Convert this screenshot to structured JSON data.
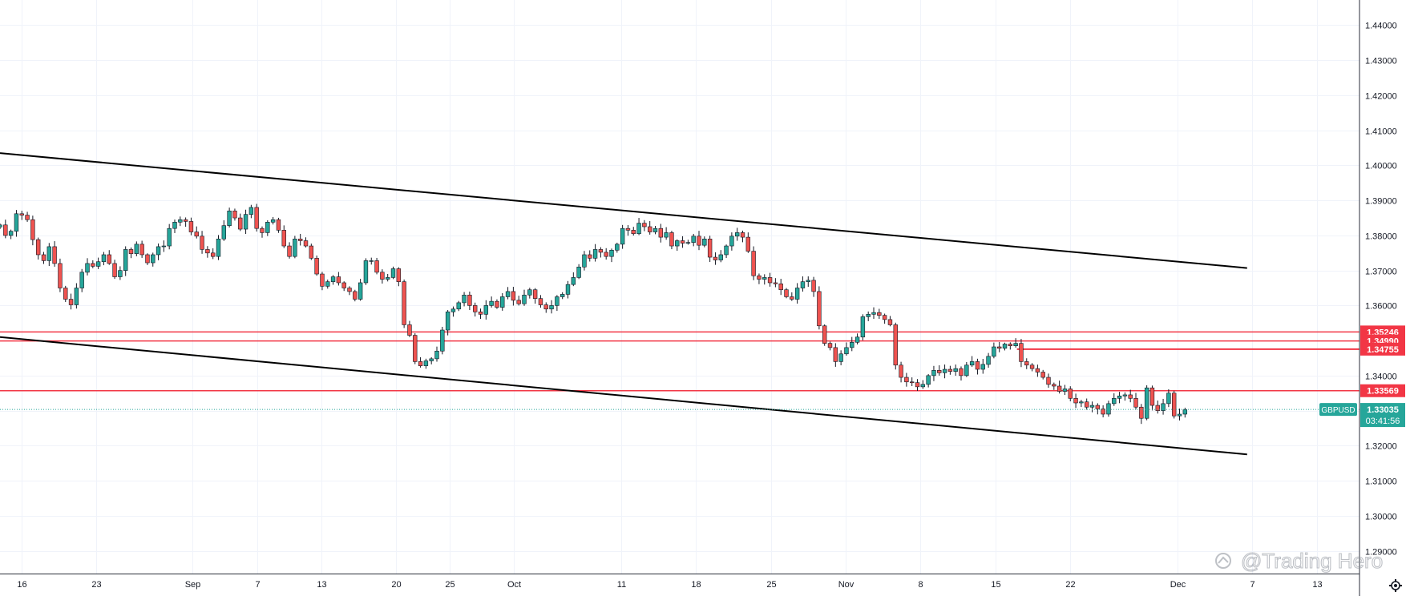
{
  "chart_data": {
    "type": "candlestick",
    "symbol": "GBPUSD",
    "last_price": 1.33035,
    "last_price_label": "1.33035",
    "countdown": "03:41:56",
    "y_ticks": [
      "1.29000",
      "1.30000",
      "1.31000",
      "1.32000",
      "1.33000",
      "1.34000",
      "1.35000",
      "1.36000",
      "1.37000",
      "1.38000",
      "1.39000",
      "1.40000",
      "1.41000",
      "1.42000",
      "1.43000",
      "1.44000"
    ],
    "y_tick_values": [
      1.29,
      1.3,
      1.31,
      1.32,
      1.33,
      1.34,
      1.35,
      1.36,
      1.37,
      1.38,
      1.39,
      1.4,
      1.41,
      1.42,
      1.43,
      1.44
    ],
    "ylim": [
      1.2835,
      1.4472
    ],
    "x_ticks": [
      "16",
      "23",
      "Sep",
      "7",
      "13",
      "20",
      "25",
      "Oct",
      "11",
      "18",
      "25",
      "Nov",
      "8",
      "15",
      "22",
      "Dec",
      "7",
      "13"
    ],
    "x_tick_days": [
      16,
      23,
      32,
      38,
      44,
      51,
      56,
      62,
      72,
      79,
      86,
      93,
      100,
      107,
      114,
      124,
      131,
      137
    ],
    "xlim": [
      14,
      141
    ],
    "horizontal_levels": [
      {
        "label": "1.35246",
        "value": 1.35246,
        "from_day": 14
      },
      {
        "label": "1.34990",
        "value": 1.3499,
        "from_day": 14
      },
      {
        "label": "1.34755",
        "value": 1.34755,
        "from_day": 109
      },
      {
        "label": "1.33569",
        "value": 1.33569,
        "from_day": 14
      }
    ],
    "trendlines": [
      {
        "name": "upper",
        "p1": [
          14,
          1.4035
        ],
        "p2": [
          130.5,
          1.3707
        ]
      },
      {
        "name": "lower",
        "p1": [
          14,
          1.351
        ],
        "p2": [
          130.5,
          1.3175
        ]
      }
    ],
    "candles_close": [
      1.383,
      1.38,
      1.3812,
      1.3862,
      1.3858,
      1.3845,
      1.3788,
      1.3745,
      1.3728,
      1.3768,
      1.372,
      1.365,
      1.3618,
      1.3602,
      1.365,
      1.3695,
      1.372,
      1.3712,
      1.3725,
      1.3745,
      1.372,
      1.3682,
      1.37,
      1.376,
      1.3748,
      1.3775,
      1.3745,
      1.3722,
      1.3745,
      1.3768,
      1.377,
      1.382,
      1.3838,
      1.3845,
      1.384,
      1.381,
      1.3798,
      1.376,
      1.375,
      1.374,
      1.379,
      1.3828,
      1.387,
      1.385,
      1.3818,
      1.386,
      1.388,
      1.382,
      1.3808,
      1.3838,
      1.3845,
      1.3815,
      1.377,
      1.374,
      1.379,
      1.3785,
      1.377,
      1.3735,
      1.369,
      1.3655,
      1.3668,
      1.3682,
      1.3665,
      1.365,
      1.364,
      1.3618,
      1.3665,
      1.3728,
      1.3728,
      1.3695,
      1.3675,
      1.368,
      1.3705,
      1.3668,
      1.3545,
      1.3515,
      1.344,
      1.3428,
      1.3442,
      1.3448,
      1.347,
      1.353,
      1.3582,
      1.359,
      1.3608,
      1.363,
      1.36,
      1.3582,
      1.3575,
      1.36,
      1.3612,
      1.3595,
      1.3625,
      1.364,
      1.3615,
      1.3605,
      1.363,
      1.3645,
      1.362,
      1.3602,
      1.359,
      1.36,
      1.3625,
      1.3632,
      1.366,
      1.368,
      1.371,
      1.3745,
      1.3735,
      1.376,
      1.3752,
      1.374,
      1.3758,
      1.3775,
      1.382,
      1.3815,
      1.3805,
      1.3835,
      1.3825,
      1.381,
      1.382,
      1.3795,
      1.3808,
      1.377,
      1.3785,
      1.3778,
      1.378,
      1.3798,
      1.3772,
      1.379,
      1.3738,
      1.373,
      1.3745,
      1.377,
      1.3798,
      1.3808,
      1.3795,
      1.3755,
      1.3685,
      1.3675,
      1.368,
      1.3665,
      1.3662,
      1.3645,
      1.3625,
      1.3618,
      1.365,
      1.3668,
      1.3672,
      1.364,
      1.3542,
      1.3492,
      1.348,
      1.344,
      1.3462,
      1.348,
      1.3495,
      1.351,
      1.3568,
      1.3575,
      1.358,
      1.3572,
      1.356,
      1.3545,
      1.343,
      1.3395,
      1.3382,
      1.338,
      1.3368,
      1.3375,
      1.34,
      1.3415,
      1.3408,
      1.3418,
      1.3412,
      1.342,
      1.34,
      1.343,
      1.344,
      1.3418,
      1.3432,
      1.3455,
      1.3482,
      1.3478,
      1.349,
      1.3485,
      1.3492,
      1.344,
      1.343,
      1.342,
      1.341,
      1.3395,
      1.3375,
      1.337,
      1.3355,
      1.3362,
      1.3335,
      1.3322,
      1.3325,
      1.331,
      1.3315,
      1.3305,
      1.329,
      1.332,
      1.3335,
      1.3342,
      1.3345,
      1.3335,
      1.331,
      1.3278,
      1.3365,
      1.3315,
      1.33,
      1.332,
      1.335,
      1.3285,
      1.329,
      1.3303
    ]
  }
}
